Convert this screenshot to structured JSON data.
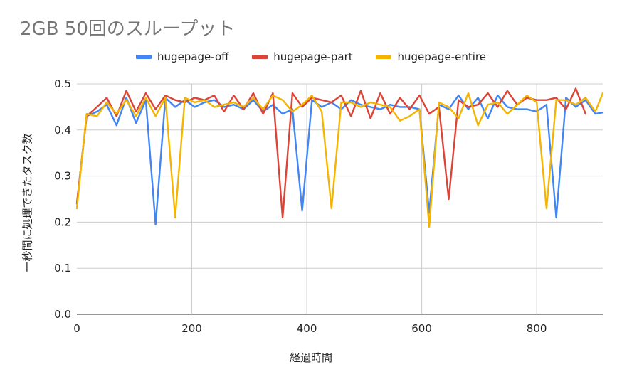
{
  "chart_data": {
    "type": "line",
    "title": "2GB 50回のスループット",
    "xlabel": "経過時間",
    "ylabel": "一秒間に処理できたタスク数",
    "xlim": [
      0,
      915
    ],
    "ylim": [
      0,
      0.5
    ],
    "xticks": [
      "0",
      "200",
      "400",
      "600",
      "800"
    ],
    "yticks": [
      "0.0",
      "0.1",
      "0.2",
      "0.3",
      "0.4",
      "0.5"
    ],
    "grid": true,
    "legend": "top-center",
    "series": [
      {
        "name": "hugepage-off",
        "color": "#4285F4",
        "x": [
          0,
          17,
          35,
          52,
          69,
          86,
          103,
          120,
          137,
          154,
          171,
          188,
          205,
          222,
          239,
          256,
          273,
          290,
          307,
          324,
          341,
          358,
          375,
          392,
          409,
          426,
          443,
          460,
          477,
          494,
          511,
          528,
          545,
          562,
          579,
          596,
          613,
          630,
          647,
          664,
          681,
          698,
          715,
          732,
          749,
          766,
          783,
          800,
          817,
          834,
          851,
          868,
          885,
          902,
          915
        ],
        "y": [
          0.24,
          0.43,
          0.44,
          0.455,
          0.41,
          0.47,
          0.415,
          0.465,
          0.195,
          0.47,
          0.45,
          0.465,
          0.45,
          0.46,
          0.465,
          0.45,
          0.455,
          0.445,
          0.465,
          0.44,
          0.455,
          0.435,
          0.445,
          0.225,
          0.465,
          0.45,
          0.46,
          0.445,
          0.465,
          0.455,
          0.45,
          0.445,
          0.455,
          0.45,
          0.45,
          0.445,
          0.22,
          0.455,
          0.445,
          0.475,
          0.445,
          0.47,
          0.425,
          0.475,
          0.45,
          0.445,
          0.445,
          0.44,
          0.455,
          0.21,
          0.47,
          0.45,
          0.465,
          0.435,
          0.438
        ]
      },
      {
        "name": "hugepage-part",
        "color": "#DB4437",
        "x": [
          0,
          17,
          35,
          52,
          69,
          86,
          103,
          120,
          137,
          154,
          171,
          188,
          205,
          222,
          239,
          256,
          273,
          290,
          307,
          324,
          341,
          358,
          375,
          392,
          409,
          426,
          443,
          460,
          477,
          494,
          511,
          528,
          545,
          562,
          579,
          596,
          613,
          630,
          647,
          664,
          681,
          698,
          715,
          732,
          749,
          766,
          783,
          800,
          817,
          834,
          851,
          868,
          885
        ],
        "y": [
          0.24,
          0.43,
          0.45,
          0.47,
          0.43,
          0.485,
          0.44,
          0.48,
          0.445,
          0.475,
          0.465,
          0.46,
          0.47,
          0.465,
          0.475,
          0.44,
          0.475,
          0.445,
          0.48,
          0.435,
          0.48,
          0.21,
          0.48,
          0.45,
          0.47,
          0.465,
          0.46,
          0.475,
          0.43,
          0.485,
          0.425,
          0.48,
          0.435,
          0.47,
          0.445,
          0.475,
          0.435,
          0.45,
          0.25,
          0.465,
          0.45,
          0.455,
          0.48,
          0.45,
          0.485,
          0.455,
          0.47,
          0.465,
          0.465,
          0.47,
          0.445,
          0.49,
          0.435
        ]
      },
      {
        "name": "hugepage-entire",
        "color": "#F4B400",
        "x": [
          0,
          17,
          35,
          52,
          69,
          86,
          103,
          120,
          137,
          154,
          171,
          188,
          205,
          222,
          239,
          256,
          273,
          290,
          307,
          324,
          341,
          358,
          375,
          392,
          409,
          426,
          443,
          460,
          477,
          494,
          511,
          528,
          545,
          562,
          579,
          596,
          613,
          630,
          647,
          664,
          681,
          698,
          715,
          732,
          749,
          766,
          783,
          800,
          817,
          834,
          851,
          868,
          885,
          902,
          915
        ],
        "y": [
          0.23,
          0.435,
          0.43,
          0.46,
          0.435,
          0.465,
          0.43,
          0.47,
          0.43,
          0.47,
          0.21,
          0.47,
          0.46,
          0.465,
          0.45,
          0.455,
          0.46,
          0.45,
          0.47,
          0.445,
          0.475,
          0.465,
          0.44,
          0.455,
          0.475,
          0.44,
          0.23,
          0.46,
          0.46,
          0.45,
          0.46,
          0.455,
          0.45,
          0.42,
          0.43,
          0.445,
          0.19,
          0.46,
          0.45,
          0.425,
          0.48,
          0.41,
          0.455,
          0.46,
          0.435,
          0.455,
          0.475,
          0.46,
          0.23,
          0.465,
          0.465,
          0.455,
          0.47,
          0.44,
          0.48
        ]
      }
    ]
  }
}
